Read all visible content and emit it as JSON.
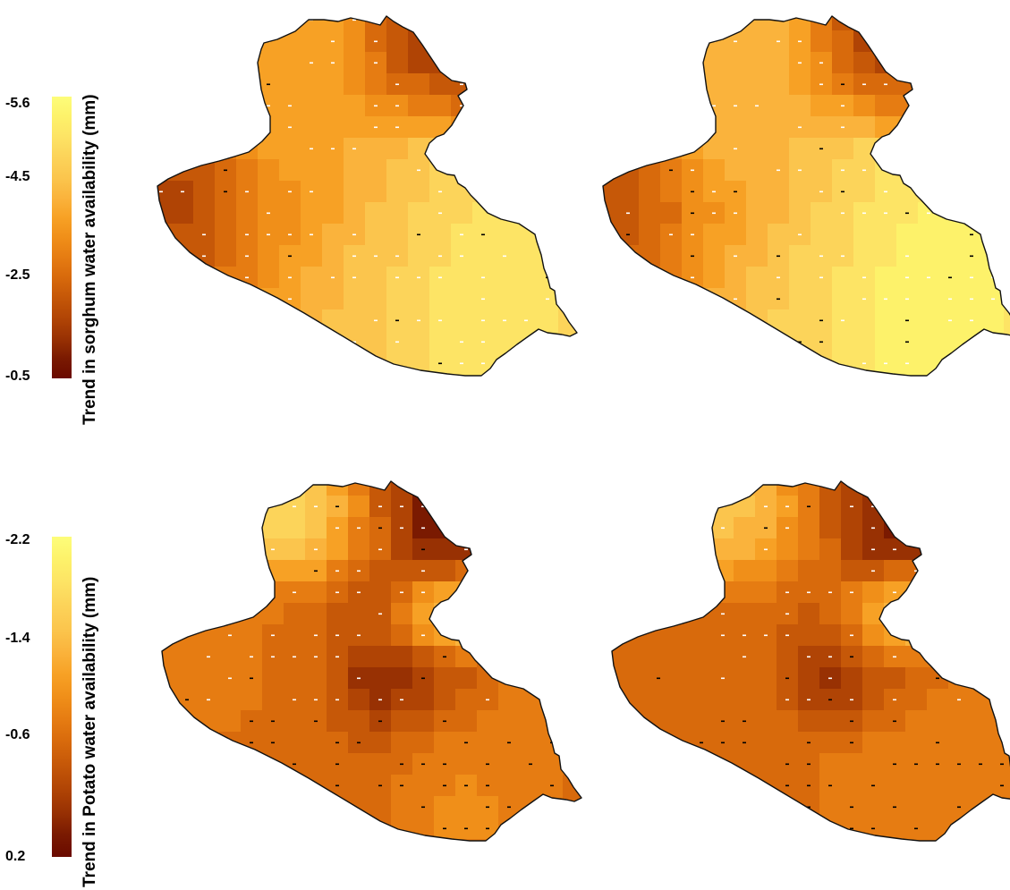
{
  "colorbars": [
    {
      "title": "Trend in sorghum water availability (mm)",
      "ticks": [
        "-5.6",
        "-4.5",
        "-2.5",
        "-0.5"
      ],
      "tick_values": [
        -5.6,
        -4.5,
        -2.5,
        -0.5
      ],
      "range": [
        -5.6,
        -0.5
      ]
    },
    {
      "title": "Trend in Potato water availability (mm)",
      "ticks": [
        "-2.2",
        "-1.4",
        "-0.6",
        "0.2"
      ],
      "tick_values": [
        -2.2,
        -1.4,
        -0.6,
        0.2
      ],
      "range": [
        -2.2,
        0.2
      ]
    }
  ],
  "palette": [
    "#fdfd7a",
    "#fdf26a",
    "#fde465",
    "#fcd45a",
    "#fbc54d",
    "#fab33c",
    "#f7a125",
    "#f08f19",
    "#e67c12",
    "#d86a0c",
    "#c65808",
    "#b04405",
    "#983103",
    "#7a1a01",
    "#6a0a00"
  ],
  "panels": [
    {
      "row": 0,
      "col": 0,
      "variable": "sorghum"
    },
    {
      "row": 0,
      "col": 1,
      "variable": "sorghum"
    },
    {
      "row": 1,
      "col": 0,
      "variable": "potato"
    },
    {
      "row": 1,
      "col": 1,
      "variable": "potato"
    }
  ]
}
